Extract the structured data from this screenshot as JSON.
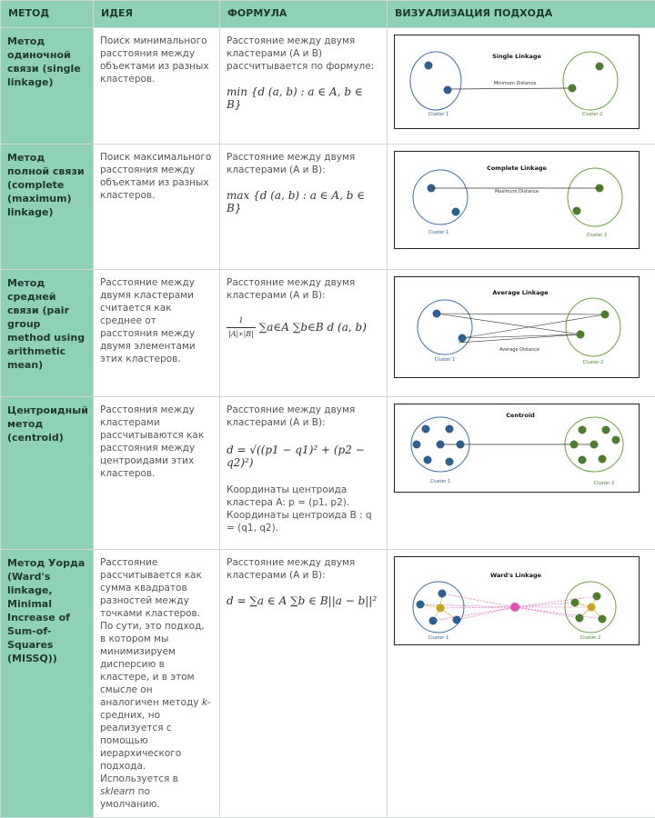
{
  "headers": [
    "МЕТОД",
    "ИДЕЯ",
    "ФОРМУЛА",
    "ВИЗУАЛИЗАЦИЯ ПОДХОДА"
  ],
  "rows": [
    {
      "method": "Метод одиночной связи (single linkage)",
      "idea": "Поиск минимального расстояния между объектами из разных кластеров.",
      "formula_text": "Расстояние между двумя кластерами (A и B) рассчитывается по формуле:",
      "formula": "min {d (a, b) : a ∈ A, b ∈ B}",
      "viz": {
        "title": "Single Linkage",
        "line_label": "Minimum Distance",
        "c1": "Cluster 1",
        "c2": "Cluster 2"
      }
    },
    {
      "method": "Метод полной связи (complete (maximum) linkage)",
      "idea": "Поиск максимального расстояния между объектами из разных кластеров.",
      "formula_text": "Расстояние между двумя кластерами (A и B):",
      "formula": "max {d (a, b) : a ∈ A, b ∈ B}",
      "viz": {
        "title": "Complete Linkage",
        "line_label": "Maximum Distance",
        "c1": "Cluster 1",
        "c2": "Cluster 2"
      }
    },
    {
      "method": "Метод средней связи (pair group method using arithmetic mean)",
      "idea": "Расстояние между двумя кластерами считается как среднее от расстояния между двумя элементами этих кластеров.",
      "formula_text": "Расстояние между двумя кластерами (A и B):",
      "formula_num": "1",
      "formula_den": "|A|∗|B|",
      "formula_rest": "∑a∈A ∑b∈B d (a, b)",
      "viz": {
        "title": "Average Linkage",
        "line_label": "Average Distance",
        "c1": "Cluster 1",
        "c2": "Cluster 2"
      }
    },
    {
      "method": "Центроидный метод (centroid)",
      "idea": "Расстояния между кластерами рассчитываются как расстояния между центроидами этих кластеров.",
      "formula_text": "Расстояние между двумя кластерами (A и B):",
      "formula": "d = √((p1 − q1)² + (p2 − q2)²)",
      "formula_note": "Координаты центроида кластера A: p = (p1, p2). Координаты центроида B : q = (q1, q2).",
      "viz": {
        "title": "Centroid",
        "c1": "Cluster 1",
        "c2": "Cluster 2"
      }
    },
    {
      "method": "Метод Уорда (Ward's linkage, Minimal Increase of Sum-of-Squares (MISSQ))",
      "idea": "Расстояние рассчитывается как сумма квадратов разностей между точками кластеров. По сути, это подход, в котором мы минимизируем дисперсию в кластере, и в этом смысле он аналогичен методу k-средних, но реализуется с помощью иерархического подхода. Используется в sklearn по умолчанию.",
      "formula_text": "Расстояние между двумя кластерами (A и B):",
      "formula": "d = ∑a ∈ A ∑b ∈ B||a − b||²",
      "viz": {
        "title": "Ward's Linkage",
        "c1": "Cluster 1",
        "c2": "Cluster 2"
      }
    }
  ],
  "colors": {
    "header_bg": "#8fd1b4",
    "cluster1": "#2e5f8e",
    "cluster1_ring": "#3d6fb0",
    "cluster2": "#4e7d2f",
    "cluster2_ring": "#6aa23c",
    "ward_center": "#e04fb4",
    "ward_centroid": "#c9a322"
  }
}
